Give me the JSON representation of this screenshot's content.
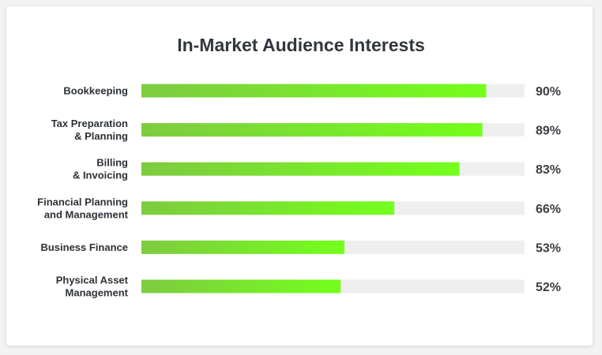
{
  "chart_data": {
    "type": "bar",
    "orientation": "horizontal",
    "title": "In-Market Audience Interests",
    "categories": [
      [
        "Bookkeeping"
      ],
      [
        "Tax Preparation",
        "& Planning"
      ],
      [
        "Billing",
        "& Invoicing"
      ],
      [
        "Financial Planning",
        "and Management"
      ],
      [
        "Business Finance"
      ],
      [
        "Physical Asset",
        "Management"
      ]
    ],
    "values": [
      90,
      89,
      83,
      66,
      53,
      52
    ],
    "value_labels": [
      "90%",
      "89%",
      "83%",
      "66%",
      "53%",
      "52%"
    ],
    "xlim": [
      0,
      100
    ],
    "grid": false,
    "legend": "none",
    "colors": {
      "bar_start": "#7ecb40",
      "bar_end": "#74ff1c",
      "track": "#efefef",
      "text": "#33373d"
    }
  }
}
